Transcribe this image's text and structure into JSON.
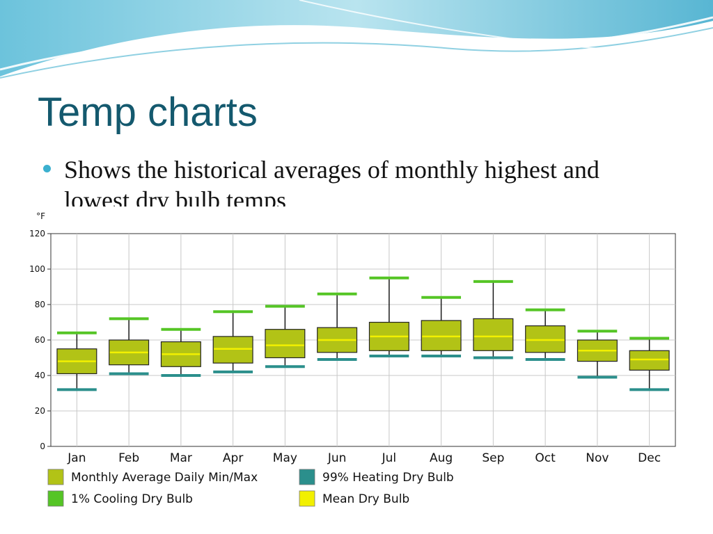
{
  "slide": {
    "title": "Temp charts",
    "bullet": "Shows the historical averages of monthly highest and lowest dry bulb temps"
  },
  "chart_data": {
    "type": "box",
    "unit_label": "°F",
    "ylim": [
      0,
      120
    ],
    "y_ticks": [
      0,
      20,
      40,
      60,
      80,
      100,
      120
    ],
    "grid": true,
    "categories": [
      "Jan",
      "Feb",
      "Mar",
      "Apr",
      "May",
      "Jun",
      "Jul",
      "Aug",
      "Sep",
      "Oct",
      "Nov",
      "Dec"
    ],
    "series": [
      {
        "name": "Monthly Average Daily Min/Max",
        "key": "box_min",
        "values": [
          41,
          46,
          45,
          47,
          50,
          53,
          54,
          54,
          54,
          53,
          48,
          43
        ]
      },
      {
        "name": "Monthly Average Daily Min/Max",
        "key": "box_max",
        "values": [
          55,
          60,
          59,
          62,
          66,
          67,
          70,
          71,
          72,
          68,
          60,
          54
        ]
      },
      {
        "name": "1% Cooling Dry Bulb",
        "key": "cooling",
        "values": [
          64,
          72,
          66,
          76,
          79,
          86,
          95,
          84,
          93,
          77,
          65,
          61
        ]
      },
      {
        "name": "99% Heating Dry Bulb",
        "key": "heating",
        "values": [
          32,
          41,
          40,
          42,
          45,
          49,
          51,
          51,
          50,
          49,
          39,
          32
        ]
      },
      {
        "name": "Mean Dry Bulb",
        "key": "mean",
        "values": [
          48,
          53,
          52,
          55,
          57,
          60,
          62,
          62,
          62,
          60,
          54,
          49
        ]
      }
    ],
    "legend": {
      "placement": "bottom",
      "items": [
        {
          "label": "Monthly Average Daily Min/Max",
          "color": "#b2c316"
        },
        {
          "label": "99% Heating Dry Bulb",
          "color": "#2b8f8c"
        },
        {
          "label": "1% Cooling Dry Bulb",
          "color": "#55c525"
        },
        {
          "label": "Mean Dry Bulb",
          "color": "#f2f000"
        }
      ]
    },
    "colors": {
      "box": "#b2c316",
      "cooling": "#55c525",
      "heating": "#2b8f8c",
      "mean": "#f2f000",
      "whisker": "#1a1a1a",
      "grid": "#c8c8c8"
    }
  },
  "theme": {
    "title_color": "#14596e",
    "bullet_color": "#3bb0cf"
  }
}
